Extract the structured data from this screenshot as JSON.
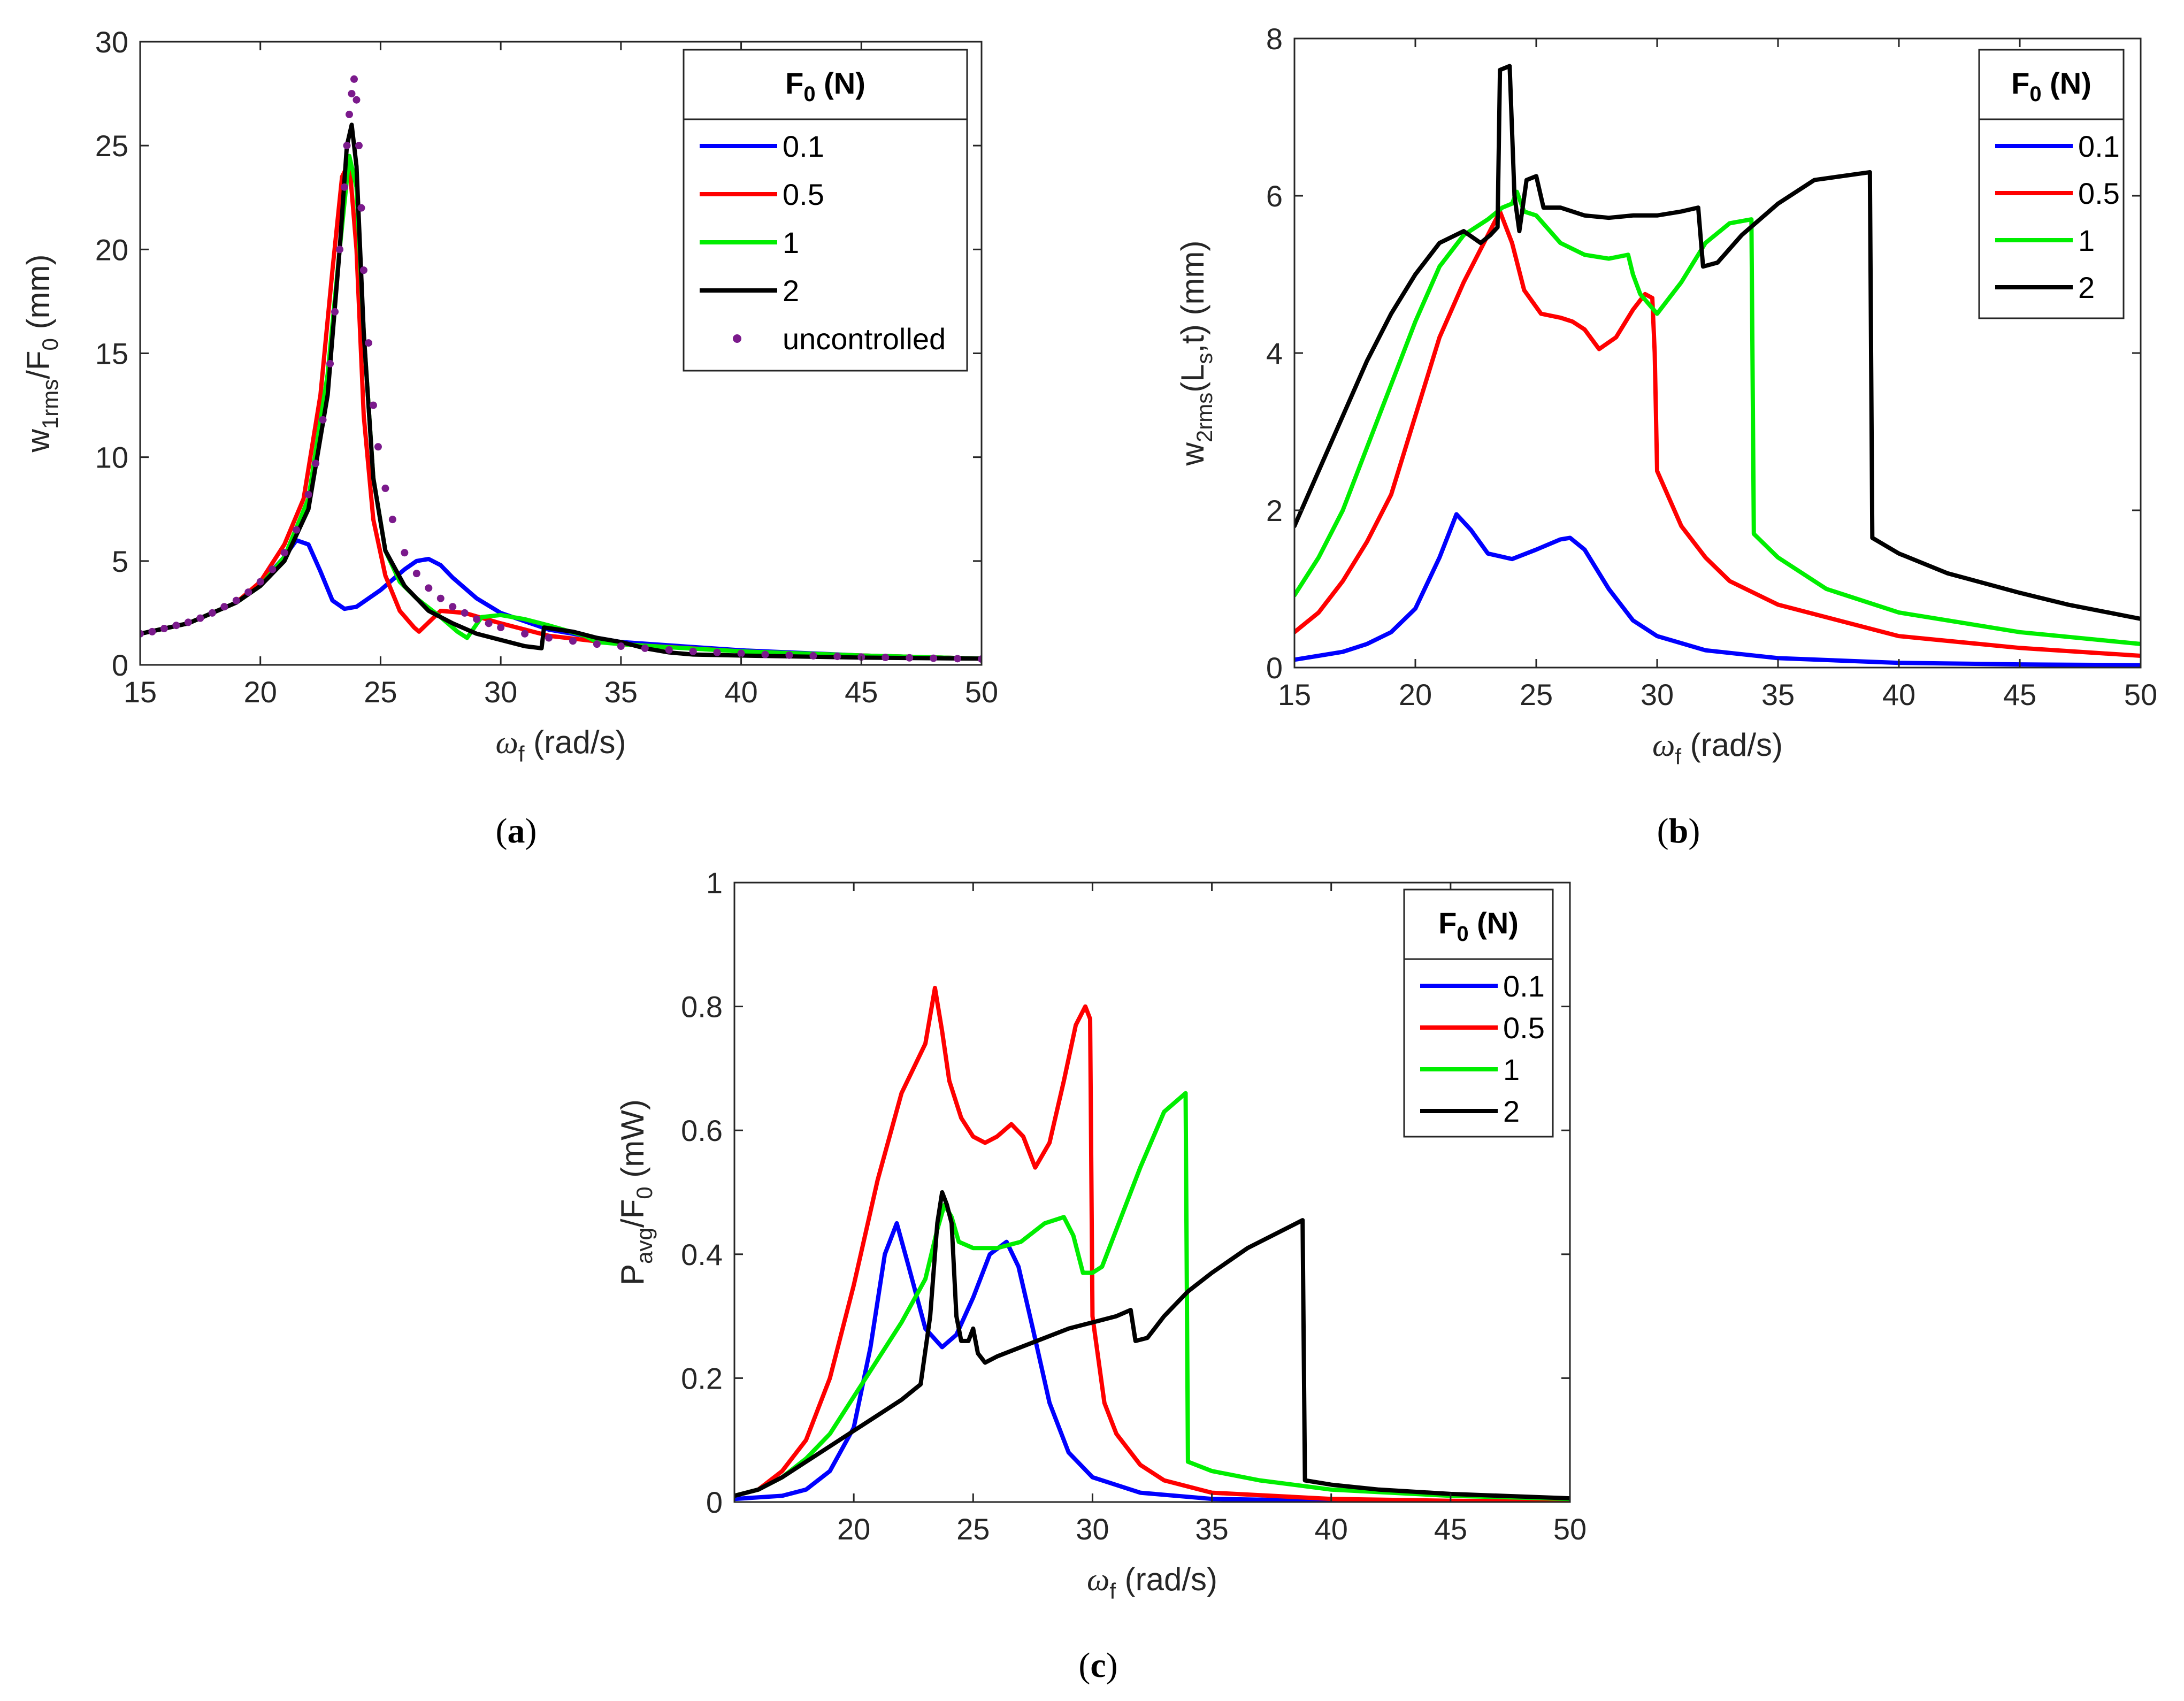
{
  "chart_data": [
    {
      "id": "a",
      "type": "line",
      "panel_label": "a",
      "xlabel": {
        "symbol": "ω",
        "sub": "f",
        "rest": " (rad/s)"
      },
      "ylabel": {
        "parts": [
          [
            "w",
            ""
          ],
          [
            "1rms",
            "sub"
          ],
          [
            "/F",
            ""
          ],
          [
            "0",
            "sub"
          ],
          [
            " (mm)",
            ""
          ]
        ]
      },
      "xlim": [
        15,
        50
      ],
      "ylim": [
        0,
        30
      ],
      "xticks": [
        15,
        20,
        25,
        30,
        35,
        40,
        45,
        50
      ],
      "yticks": [
        0,
        5,
        10,
        15,
        20,
        25,
        30
      ],
      "legend": {
        "title": "F",
        "title_sub": "0",
        "title_rest": " (N)",
        "position": "top-right"
      },
      "series": [
        {
          "name": "0.1",
          "color": "#0000ff",
          "style": "line",
          "x": [
            15,
            17,
            19,
            20,
            21,
            21.5,
            22,
            22.5,
            23,
            23.5,
            24,
            25,
            26,
            26.5,
            27,
            27.5,
            28,
            29,
            30,
            32,
            35,
            40,
            45,
            50
          ],
          "y": [
            1.5,
            2.0,
            3.0,
            3.9,
            5.2,
            6.0,
            5.8,
            4.5,
            3.1,
            2.7,
            2.8,
            3.6,
            4.6,
            5.0,
            5.1,
            4.8,
            4.2,
            3.2,
            2.5,
            1.7,
            1.1,
            0.7,
            0.45,
            0.3
          ]
        },
        {
          "name": "0.5",
          "color": "#ff0000",
          "style": "line",
          "x": [
            15,
            17,
            19,
            20,
            21,
            21.8,
            22.5,
            23,
            23.4,
            23.7,
            24,
            24.3,
            24.7,
            25.2,
            25.8,
            26.4,
            26.6,
            27.5,
            28.5,
            30,
            32,
            35,
            40,
            45,
            50
          ],
          "y": [
            1.5,
            2.0,
            3.0,
            4.0,
            5.8,
            8.0,
            13.0,
            19.0,
            23.5,
            24.2,
            20.0,
            12.0,
            7.0,
            4.3,
            2.6,
            1.8,
            1.6,
            2.6,
            2.5,
            2.0,
            1.4,
            1.0,
            0.65,
            0.45,
            0.3
          ]
        },
        {
          "name": "1",
          "color": "#00ee00",
          "style": "line",
          "x": [
            15,
            17,
            19,
            20,
            21,
            22,
            22.8,
            23.3,
            23.7,
            24.0,
            24.3,
            24.7,
            25.2,
            25.8,
            26.5,
            27.5,
            28.2,
            28.6,
            29.2,
            30,
            31,
            32,
            33.5,
            34,
            35,
            37,
            40,
            45,
            50
          ],
          "y": [
            1.5,
            2.0,
            3.0,
            3.8,
            5.2,
            8.0,
            14.0,
            20.0,
            24.5,
            23.0,
            16.0,
            9.0,
            5.5,
            4.0,
            3.2,
            2.3,
            1.6,
            1.3,
            2.3,
            2.4,
            2.2,
            1.9,
            1.4,
            1.1,
            1.0,
            0.85,
            0.65,
            0.45,
            0.3
          ]
        },
        {
          "name": "2",
          "color": "#000000",
          "style": "line",
          "x": [
            15,
            17,
            19,
            20,
            21,
            22,
            22.8,
            23.3,
            23.6,
            23.8,
            24.0,
            24.3,
            24.7,
            25.2,
            26,
            27,
            28,
            29,
            30,
            31,
            31.7,
            31.8,
            33,
            34,
            35,
            36,
            37,
            38,
            40,
            45,
            50
          ],
          "y": [
            1.5,
            2.0,
            3.0,
            3.8,
            5.0,
            7.5,
            13.0,
            20.0,
            25.0,
            26.0,
            24.0,
            16.0,
            9.0,
            5.5,
            3.8,
            2.6,
            2.0,
            1.5,
            1.2,
            0.9,
            0.8,
            1.8,
            1.6,
            1.3,
            1.1,
            0.8,
            0.6,
            0.5,
            0.45,
            0.35,
            0.3
          ]
        },
        {
          "name": "uncontrolled",
          "color": "#7b1a8c",
          "style": "dots",
          "x": [
            15,
            15.5,
            16,
            16.5,
            17,
            17.5,
            18,
            18.5,
            19,
            19.5,
            20,
            20.5,
            21,
            21.5,
            22,
            22.3,
            22.6,
            22.9,
            23.1,
            23.3,
            23.5,
            23.6,
            23.7,
            23.8,
            23.9,
            24.0,
            24.1,
            24.2,
            24.3,
            24.5,
            24.7,
            24.9,
            25.2,
            25.5,
            26,
            26.5,
            27,
            27.5,
            28,
            28.5,
            29,
            29.5,
            30,
            31,
            32,
            33,
            34,
            35,
            36,
            37,
            38,
            39,
            40,
            41,
            42,
            43,
            44,
            45,
            46,
            47,
            48,
            49,
            50
          ],
          "y": [
            1.5,
            1.6,
            1.75,
            1.9,
            2.05,
            2.25,
            2.5,
            2.8,
            3.1,
            3.5,
            4.0,
            4.6,
            5.4,
            6.5,
            8.2,
            9.7,
            11.8,
            14.5,
            17.0,
            20.0,
            23.0,
            25.0,
            26.5,
            27.5,
            28.2,
            27.2,
            25.0,
            22.0,
            19.0,
            15.5,
            12.5,
            10.5,
            8.5,
            7.0,
            5.4,
            4.4,
            3.7,
            3.2,
            2.8,
            2.5,
            2.2,
            2.0,
            1.8,
            1.5,
            1.3,
            1.15,
            1.0,
            0.9,
            0.8,
            0.72,
            0.65,
            0.6,
            0.55,
            0.5,
            0.47,
            0.44,
            0.41,
            0.38,
            0.36,
            0.34,
            0.32,
            0.3,
            0.28
          ]
        }
      ]
    },
    {
      "id": "b",
      "type": "line",
      "panel_label": "b",
      "xlabel": {
        "symbol": "ω",
        "sub": "f",
        "rest": " (rad/s)"
      },
      "ylabel": {
        "parts": [
          [
            "w",
            ""
          ],
          [
            "2rms",
            "sub"
          ],
          [
            "(L",
            ""
          ],
          [
            "s",
            "sub"
          ],
          [
            ",t) (mm)",
            ""
          ]
        ]
      },
      "xlim": [
        15,
        50
      ],
      "ylim": [
        0,
        8
      ],
      "xticks": [
        15,
        20,
        25,
        30,
        35,
        40,
        45,
        50
      ],
      "yticks": [
        0,
        2,
        4,
        6,
        8
      ],
      "legend": {
        "title": "F",
        "title_sub": "0",
        "title_rest": " (N)",
        "position": "top-right"
      },
      "series": [
        {
          "name": "0.1",
          "color": "#0000ff",
          "style": "line",
          "x": [
            15,
            16,
            17,
            18,
            19,
            20,
            21,
            21.7,
            22.3,
            23,
            24,
            25,
            26,
            26.4,
            27,
            28,
            29,
            30,
            32,
            35,
            40,
            45,
            50
          ],
          "y": [
            0.1,
            0.15,
            0.2,
            0.3,
            0.45,
            0.75,
            1.4,
            1.95,
            1.75,
            1.45,
            1.38,
            1.5,
            1.63,
            1.65,
            1.5,
            1.0,
            0.6,
            0.4,
            0.22,
            0.12,
            0.06,
            0.04,
            0.03
          ]
        },
        {
          "name": "0.5",
          "color": "#ff0000",
          "style": "line",
          "x": [
            15,
            16,
            17,
            18,
            19,
            20,
            21,
            22,
            23,
            23.5,
            24.0,
            24.5,
            25.2,
            26,
            26.5,
            27,
            27.6,
            28.3,
            29,
            29.5,
            29.8,
            29.9,
            30.0,
            31,
            32,
            33,
            35,
            40,
            45,
            50
          ],
          "y": [
            0.45,
            0.7,
            1.1,
            1.6,
            2.2,
            3.2,
            4.2,
            4.9,
            5.5,
            5.8,
            5.4,
            4.8,
            4.5,
            4.45,
            4.4,
            4.3,
            4.05,
            4.2,
            4.55,
            4.75,
            4.7,
            4.0,
            2.5,
            1.8,
            1.4,
            1.1,
            0.8,
            0.4,
            0.25,
            0.15
          ]
        },
        {
          "name": "1",
          "color": "#00ee00",
          "style": "line",
          "x": [
            15,
            16,
            17,
            18,
            19,
            20,
            21,
            22,
            23,
            23.6,
            24.0,
            24.2,
            24.5,
            25,
            26,
            27,
            28,
            28.8,
            29.0,
            29.3,
            30,
            31,
            32,
            33,
            33.9,
            34.0,
            35,
            37,
            40,
            45,
            50
          ],
          "y": [
            0.92,
            1.4,
            2.0,
            2.8,
            3.6,
            4.4,
            5.1,
            5.5,
            5.7,
            5.85,
            5.9,
            6.05,
            5.8,
            5.75,
            5.4,
            5.25,
            5.2,
            5.25,
            5.0,
            4.75,
            4.5,
            4.9,
            5.4,
            5.65,
            5.7,
            1.7,
            1.4,
            1.0,
            0.7,
            0.45,
            0.3
          ]
        },
        {
          "name": "2",
          "color": "#000000",
          "style": "line",
          "x": [
            15,
            16,
            17,
            18,
            19,
            20,
            21,
            22,
            22.7,
            23.1,
            23.4,
            23.5,
            23.9,
            24.1,
            24.3,
            24.6,
            25.0,
            25.3,
            26,
            27,
            28,
            29,
            30,
            31,
            31.7,
            31.9,
            32.5,
            33.5,
            35,
            36.5,
            38.8,
            38.9,
            40,
            42,
            45,
            47,
            50
          ],
          "y": [
            1.8,
            2.5,
            3.2,
            3.9,
            4.5,
            5.0,
            5.4,
            5.55,
            5.4,
            5.5,
            5.6,
            7.6,
            7.65,
            6.0,
            5.55,
            6.2,
            6.25,
            5.85,
            5.85,
            5.75,
            5.72,
            5.75,
            5.75,
            5.8,
            5.85,
            5.1,
            5.15,
            5.5,
            5.9,
            6.2,
            6.3,
            1.65,
            1.45,
            1.2,
            0.95,
            0.8,
            0.62
          ]
        }
      ]
    },
    {
      "id": "c",
      "type": "line",
      "panel_label": "c",
      "xlabel": {
        "symbol": "ω",
        "sub": "f",
        "rest": " (rad/s)"
      },
      "ylabel": {
        "parts": [
          [
            "P",
            ""
          ],
          [
            "avg",
            "sub"
          ],
          [
            "/F",
            ""
          ],
          [
            "0",
            "sub"
          ],
          [
            " (mW)",
            ""
          ]
        ]
      },
      "xlim": [
        15,
        50
      ],
      "ylim": [
        0,
        1
      ],
      "xticks": [
        20,
        25,
        30,
        35,
        40,
        45,
        50
      ],
      "yticks": [
        0,
        0.2,
        0.4,
        0.6,
        0.8,
        1
      ],
      "legend": {
        "title": "F",
        "title_sub": "0",
        "title_rest": " (N)",
        "position": "top-right"
      },
      "series": [
        {
          "name": "0.1",
          "color": "#0000ff",
          "style": "line",
          "x": [
            15,
            17,
            18,
            19,
            20,
            20.7,
            21.3,
            21.8,
            22.3,
            23,
            23.7,
            24.3,
            25,
            25.7,
            26.4,
            26.9,
            27.5,
            28.2,
            29,
            30,
            32,
            35,
            40,
            50
          ],
          "y": [
            0.005,
            0.01,
            0.02,
            0.05,
            0.12,
            0.25,
            0.4,
            0.45,
            0.38,
            0.28,
            0.25,
            0.27,
            0.33,
            0.4,
            0.42,
            0.38,
            0.28,
            0.16,
            0.08,
            0.04,
            0.015,
            0.005,
            0.002,
            0.001
          ]
        },
        {
          "name": "0.5",
          "color": "#ff0000",
          "style": "line",
          "x": [
            15,
            16,
            17,
            18,
            19,
            20,
            21,
            22,
            23,
            23.4,
            23.7,
            24.0,
            24.5,
            25,
            25.5,
            26,
            26.6,
            27.1,
            27.6,
            28.2,
            28.8,
            29.3,
            29.7,
            29.9,
            30.0,
            30.5,
            31,
            32,
            33,
            35,
            40,
            45,
            50
          ],
          "y": [
            0.01,
            0.02,
            0.05,
            0.1,
            0.2,
            0.35,
            0.52,
            0.66,
            0.74,
            0.83,
            0.76,
            0.68,
            0.62,
            0.59,
            0.58,
            0.59,
            0.61,
            0.59,
            0.54,
            0.58,
            0.68,
            0.77,
            0.8,
            0.78,
            0.3,
            0.16,
            0.11,
            0.06,
            0.035,
            0.015,
            0.005,
            0.002,
            0.001
          ]
        },
        {
          "name": "1",
          "color": "#00ee00",
          "style": "line",
          "x": [
            15,
            16,
            17,
            18,
            19,
            20,
            21,
            22,
            23,
            23.5,
            23.8,
            24.1,
            24.4,
            25,
            26,
            27,
            28,
            28.8,
            29.2,
            29.6,
            30.0,
            30.4,
            31,
            32,
            33,
            33.9,
            34.0,
            35,
            37,
            40,
            45,
            50
          ],
          "y": [
            0.01,
            0.02,
            0.04,
            0.07,
            0.11,
            0.17,
            0.23,
            0.29,
            0.36,
            0.44,
            0.48,
            0.46,
            0.42,
            0.41,
            0.41,
            0.42,
            0.45,
            0.46,
            0.43,
            0.37,
            0.37,
            0.38,
            0.44,
            0.54,
            0.63,
            0.66,
            0.065,
            0.05,
            0.035,
            0.02,
            0.01,
            0.005
          ]
        },
        {
          "name": "2",
          "color": "#000000",
          "style": "line",
          "x": [
            15,
            16,
            17,
            18,
            19,
            20,
            21,
            22,
            22.8,
            23.2,
            23.5,
            23.7,
            23.9,
            24.1,
            24.3,
            24.5,
            24.8,
            25.0,
            25.2,
            25.5,
            26,
            27,
            28,
            29,
            30,
            31,
            31.6,
            31.8,
            32.3,
            33,
            34,
            35,
            36.5,
            38.8,
            38.9,
            40,
            42,
            45,
            50
          ],
          "y": [
            0.01,
            0.02,
            0.04,
            0.065,
            0.09,
            0.115,
            0.14,
            0.165,
            0.19,
            0.3,
            0.45,
            0.5,
            0.48,
            0.45,
            0.3,
            0.26,
            0.26,
            0.28,
            0.24,
            0.225,
            0.235,
            0.25,
            0.265,
            0.28,
            0.29,
            0.3,
            0.31,
            0.26,
            0.265,
            0.3,
            0.34,
            0.37,
            0.41,
            0.455,
            0.035,
            0.028,
            0.02,
            0.013,
            0.006
          ]
        }
      ]
    }
  ]
}
